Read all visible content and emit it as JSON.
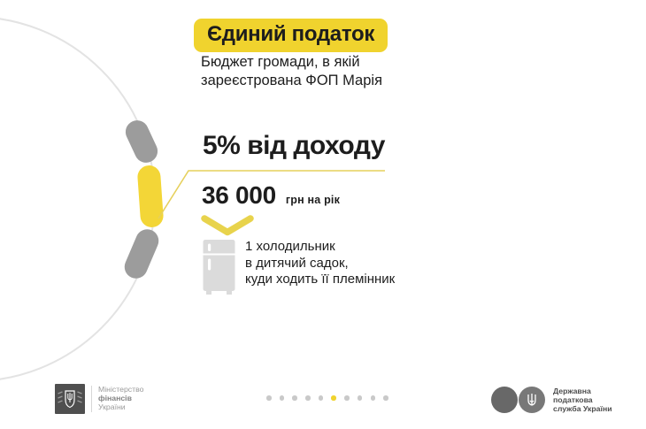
{
  "slide": {
    "title": "Єдиний податок",
    "subtitle": "Бюджет громади, в якій\nзареєстрована ФОП Марія",
    "rate": {
      "heading": "5% від доходу",
      "amount": "36 000",
      "unit": "грн на рік"
    },
    "example": "1 холодильник\nв дитячий садок,\nкуди ходить її племінник",
    "graphic": {
      "type": "circle-arc-with-segments",
      "segments": [
        {
          "color": "#9C9C9C",
          "highlighted": false
        },
        {
          "color": "#F3D637",
          "highlighted": true
        },
        {
          "color": "#9C9C9C",
          "highlighted": false
        }
      ],
      "callout_connects_to": "5% від доходу"
    },
    "icons": {
      "chevron_down": "v-shape pointing down",
      "fridge": "refrigerator pictogram",
      "ministry_emblem": "shield with trident in dark square",
      "tax_emblem": "trident in gray circle"
    }
  },
  "colors": {
    "accent_yellow": "#F0D32E",
    "segment_yellow": "#F3D637",
    "segment_gray": "#9C9C9C",
    "arc_gray": "#E3E3E3",
    "text_dark": "#1D1D1D",
    "fridge_gray": "#DBDBDB",
    "dot_gray": "#C9C9C9"
  },
  "pagination": {
    "total": 10,
    "active_index": 5
  },
  "footer": {
    "ministry": {
      "line1": "Міністерство",
      "line2": "фінансів",
      "line3": "України"
    },
    "tax_service": "Державна\nподаткова\nслужба України"
  }
}
